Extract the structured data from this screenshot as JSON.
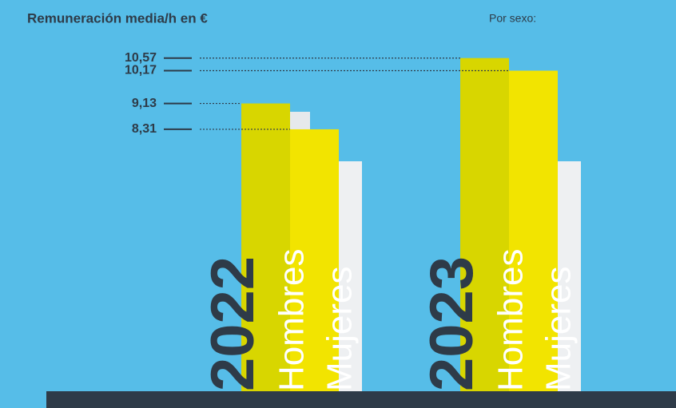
{
  "chart_data": {
    "type": "bar",
    "title": "Remuneración media/h en €",
    "subtitle": "Por sexo:",
    "categories": [
      "2022",
      "2023"
    ],
    "series": [
      {
        "name": "Hombres",
        "color": "#d8d600",
        "values": [
          9.13,
          10.57
        ],
        "value_labels": [
          "9,13",
          "10,57"
        ]
      },
      {
        "name": "Mujeres",
        "color": "#f2e400",
        "values": [
          8.31,
          10.17
        ],
        "value_labels": [
          "8,31",
          "10,17"
        ]
      }
    ],
    "ylim": [
      0,
      11.5
    ]
  }
}
